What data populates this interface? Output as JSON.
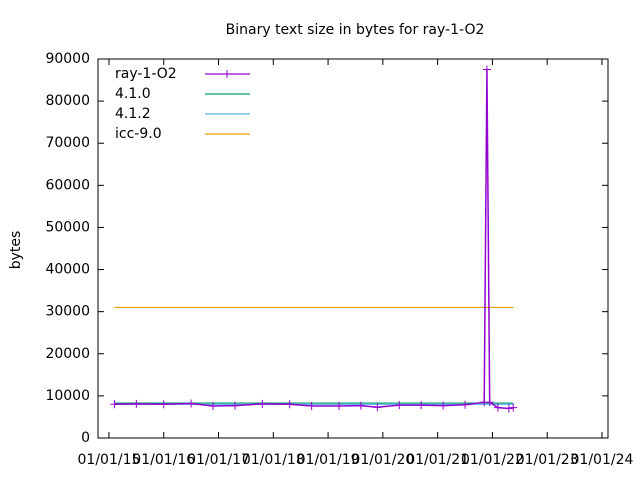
{
  "chart_data": {
    "type": "line",
    "title": "Binary text size in bytes for ray-1-O2",
    "ylabel": "bytes",
    "xlim": [
      2014.8,
      2024.11
    ],
    "xticks": [
      {
        "value": 2015,
        "label": "01/01/15"
      },
      {
        "value": 2016,
        "label": "01/01/16"
      },
      {
        "value": 2017,
        "label": "01/01/17"
      },
      {
        "value": 2018,
        "label": "01/01/18"
      },
      {
        "value": 2019,
        "label": "01/01/19"
      },
      {
        "value": 2020,
        "label": "01/01/20"
      },
      {
        "value": 2021,
        "label": "01/01/21"
      },
      {
        "value": 2022,
        "label": "01/01/22"
      },
      {
        "value": 2023,
        "label": "01/01/23"
      },
      {
        "value": 2024,
        "label": "01/01/24"
      }
    ],
    "ylim": [
      0,
      90000
    ],
    "yticks": [
      0,
      10000,
      20000,
      30000,
      40000,
      50000,
      60000,
      70000,
      80000,
      90000
    ],
    "legend": "top-left",
    "series": [
      {
        "name": "ray-1-O2",
        "color": "#9400d3",
        "x": [
          2015.1,
          2015.5,
          2016.0,
          2016.5,
          2016.9,
          2017.3,
          2017.8,
          2018.3,
          2018.7,
          2019.2,
          2019.6,
          2019.9,
          2020.3,
          2020.7,
          2021.1,
          2021.5,
          2021.85,
          2021.9,
          2021.95,
          2022.1,
          2022.3,
          2022.38
        ],
        "values": [
          8000,
          8100,
          8000,
          8200,
          7600,
          7700,
          8100,
          8000,
          7600,
          7600,
          7700,
          7300,
          7800,
          7800,
          7700,
          7900,
          8500,
          87500,
          8500,
          7200,
          7000,
          7200
        ]
      },
      {
        "name": "4.1.0",
        "color": "#009e73",
        "x": [
          2015.1,
          2022.38
        ],
        "values": [
          8300,
          8300
        ]
      },
      {
        "name": "4.1.2",
        "color": "#56b4e9",
        "x": [
          2015.1,
          2022.38
        ],
        "values": [
          8000,
          8000
        ]
      },
      {
        "name": "icc-9.0",
        "color": "#e69f00",
        "x": [
          2015.1,
          2022.38
        ],
        "values": [
          31000,
          31000
        ]
      }
    ]
  }
}
